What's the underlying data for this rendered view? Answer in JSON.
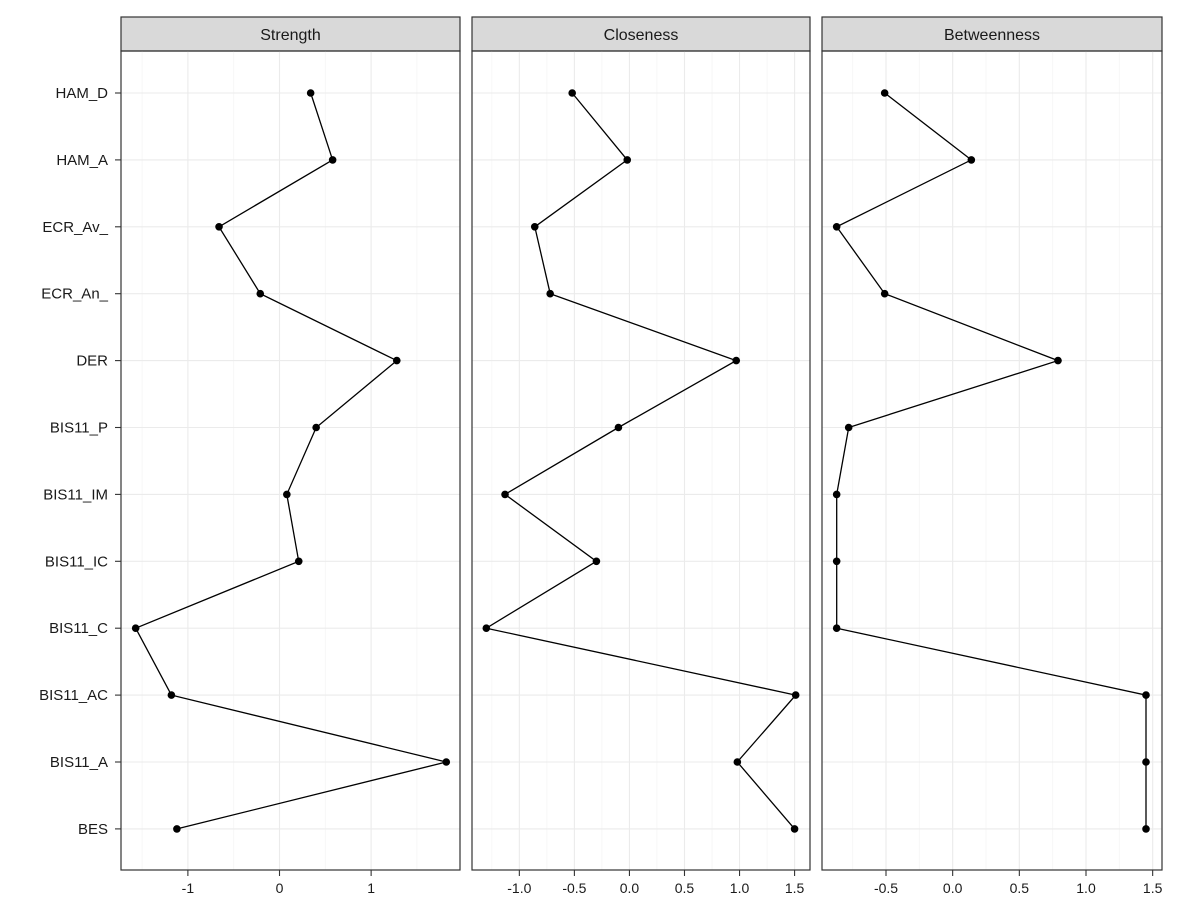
{
  "chart_data": {
    "type": "line",
    "orientation": "faceted-horizontal",
    "grid": true,
    "legend": "none",
    "categories": [
      "HAM_D",
      "HAM_A",
      "ECR_Av_",
      "ECR_An_",
      "DER",
      "BIS11_P",
      "BIS11_IM",
      "BIS11_IC",
      "BIS11_C",
      "BIS11_AC",
      "BIS11_A",
      "BES"
    ],
    "panels": [
      {
        "title": "Strength",
        "xlim": [
          -1.73,
          1.97
        ],
        "xticks": [
          -1,
          0,
          1
        ],
        "xtick_labels": [
          "-1",
          "0",
          "1"
        ],
        "values": [
          0.34,
          0.58,
          -0.66,
          -0.21,
          1.28,
          0.4,
          0.08,
          0.21,
          -1.57,
          -1.18,
          1.82,
          -1.12
        ]
      },
      {
        "title": "Closeness",
        "xlim": [
          -1.43,
          1.64
        ],
        "xticks": [
          -1.0,
          -0.5,
          0.0,
          0.5,
          1.0,
          1.5
        ],
        "xtick_labels": [
          "-1.0",
          "-0.5",
          "0.0",
          "0.5",
          "1.0",
          "1.5"
        ],
        "values": [
          -0.52,
          -0.02,
          -0.86,
          -0.72,
          0.97,
          -0.1,
          -1.13,
          -0.3,
          -1.3,
          1.51,
          0.98,
          1.5
        ]
      },
      {
        "title": "Betweenness",
        "xlim": [
          -0.98,
          1.57
        ],
        "xticks": [
          -0.5,
          0.0,
          0.5,
          1.0,
          1.5
        ],
        "xtick_labels": [
          "-0.5",
          "0.0",
          "0.5",
          "1.0",
          "1.5"
        ],
        "values": [
          -0.51,
          0.14,
          -0.87,
          -0.51,
          0.79,
          -0.78,
          -0.87,
          -0.87,
          -0.87,
          1.45,
          1.45,
          1.45
        ]
      }
    ]
  }
}
